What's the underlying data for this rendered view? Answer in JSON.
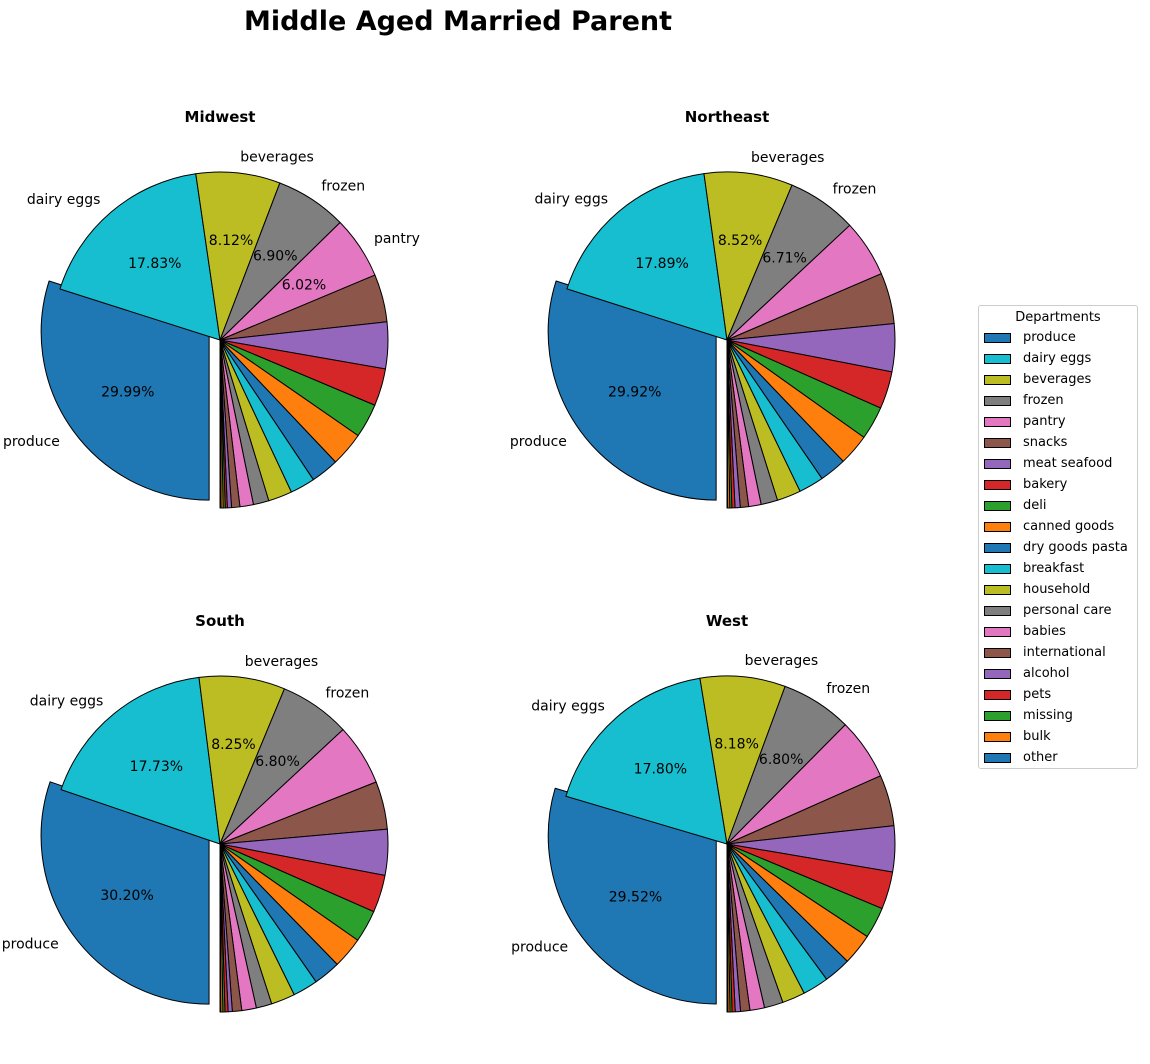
{
  "figure": {
    "title": "Middle Aged Married Parent"
  },
  "legend": {
    "title": "Departments",
    "items": [
      {
        "label": "produce",
        "color": "#1f77b4"
      },
      {
        "label": "dairy eggs",
        "color": "#17becf"
      },
      {
        "label": "beverages",
        "color": "#bcbd22"
      },
      {
        "label": "frozen",
        "color": "#7f7f7f"
      },
      {
        "label": "pantry",
        "color": "#e377c2"
      },
      {
        "label": "snacks",
        "color": "#8c564b"
      },
      {
        "label": "meat seafood",
        "color": "#9467bd"
      },
      {
        "label": "bakery",
        "color": "#d62728"
      },
      {
        "label": "deli",
        "color": "#2ca02c"
      },
      {
        "label": "canned goods",
        "color": "#ff7f0e"
      },
      {
        "label": "dry goods pasta",
        "color": "#1f77b4"
      },
      {
        "label": "breakfast",
        "color": "#17becf"
      },
      {
        "label": "household",
        "color": "#bcbd22"
      },
      {
        "label": "personal care",
        "color": "#7f7f7f"
      },
      {
        "label": "babies",
        "color": "#e377c2"
      },
      {
        "label": "international",
        "color": "#8c564b"
      },
      {
        "label": "alcohol",
        "color": "#9467bd"
      },
      {
        "label": "pets",
        "color": "#d62728"
      },
      {
        "label": "missing",
        "color": "#2ca02c"
      },
      {
        "label": "bulk",
        "color": "#ff7f0e"
      },
      {
        "label": "other",
        "color": "#1f77b4"
      }
    ]
  },
  "chart_data": [
    {
      "type": "pie",
      "title": "Midwest",
      "categories": [
        "produce",
        "dairy eggs",
        "beverages",
        "frozen",
        "pantry",
        "snacks",
        "meat seafood",
        "bakery",
        "deli",
        "canned goods",
        "dry goods pasta",
        "breakfast",
        "household",
        "personal care",
        "babies",
        "international",
        "alcohol",
        "pets",
        "missing",
        "bulk",
        "other"
      ],
      "values": [
        29.99,
        17.83,
        8.12,
        6.9,
        6.02,
        4.6,
        4.5,
        3.6,
        3.3,
        3.3,
        2.7,
        2.4,
        2.3,
        1.5,
        1.3,
        0.8,
        0.4,
        0.2,
        0.2,
        0.2,
        0.1
      ],
      "shown_percent_labels": [
        "29.99%",
        "17.83%",
        "8.12%",
        "6.90%",
        "6.02%"
      ],
      "shown_category_labels": [
        "produce",
        "dairy eggs",
        "beverages",
        "frozen",
        "pantry"
      ],
      "exploded": [
        "produce"
      ]
    },
    {
      "type": "pie",
      "title": "Northeast",
      "categories": [
        "produce",
        "dairy eggs",
        "beverages",
        "frozen",
        "pantry",
        "snacks",
        "meat seafood",
        "bakery",
        "deli",
        "canned goods",
        "dry goods pasta",
        "breakfast",
        "household",
        "personal care",
        "babies",
        "international",
        "alcohol",
        "pets",
        "missing",
        "bulk",
        "other"
      ],
      "values": [
        29.92,
        17.89,
        8.52,
        6.71,
        5.5,
        4.9,
        4.6,
        3.6,
        3.2,
        3.0,
        2.6,
        2.4,
        2.3,
        1.6,
        1.2,
        0.8,
        0.5,
        0.3,
        0.2,
        0.2,
        0.06
      ],
      "shown_percent_labels": [
        "29.92%",
        "17.89%",
        "8.52%",
        "6.71%"
      ],
      "shown_category_labels": [
        "produce",
        "dairy eggs",
        "beverages",
        "frozen"
      ],
      "exploded": [
        "produce"
      ]
    },
    {
      "type": "pie",
      "title": "South",
      "categories": [
        "produce",
        "dairy eggs",
        "beverages",
        "frozen",
        "pantry",
        "snacks",
        "meat seafood",
        "bakery",
        "deli",
        "canned goods",
        "dry goods pasta",
        "breakfast",
        "household",
        "personal care",
        "babies",
        "international",
        "alcohol",
        "pets",
        "missing",
        "bulk",
        "other"
      ],
      "values": [
        30.2,
        17.73,
        8.25,
        6.8,
        5.9,
        4.6,
        4.4,
        3.6,
        3.1,
        3.0,
        2.6,
        2.4,
        2.3,
        1.5,
        1.4,
        0.9,
        0.4,
        0.3,
        0.2,
        0.2,
        0.07
      ],
      "shown_percent_labels": [
        "30.20%",
        "17.73%",
        "8.25%",
        "6.80%"
      ],
      "shown_category_labels": [
        "produce",
        "dairy eggs",
        "beverages",
        "frozen"
      ],
      "exploded": [
        "produce"
      ]
    },
    {
      "type": "pie",
      "title": "West",
      "categories": [
        "produce",
        "dairy eggs",
        "beverages",
        "frozen",
        "pantry",
        "snacks",
        "meat seafood",
        "bakery",
        "deli",
        "canned goods",
        "dry goods pasta",
        "breakfast",
        "household",
        "personal care",
        "babies",
        "international",
        "alcohol",
        "pets",
        "missing",
        "bulk",
        "other"
      ],
      "values": [
        29.52,
        17.8,
        8.18,
        6.8,
        5.9,
        4.9,
        4.4,
        3.6,
        3.0,
        3.0,
        2.6,
        2.5,
        2.2,
        1.8,
        1.4,
        0.9,
        0.5,
        0.3,
        0.2,
        0.2,
        0.08
      ],
      "shown_percent_labels": [
        "29.52%",
        "17.80%",
        "8.18%",
        "6.80%"
      ],
      "shown_category_labels": [
        "produce",
        "dairy eggs",
        "beverages",
        "frozen"
      ],
      "exploded": [
        "produce"
      ]
    }
  ]
}
